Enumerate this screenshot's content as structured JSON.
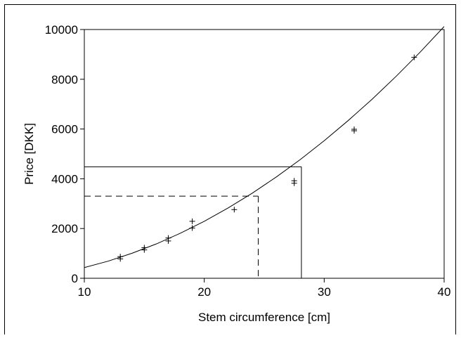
{
  "chart_data": {
    "type": "scatter",
    "xlabel": "Stem circumference  [cm]",
    "ylabel": "Price  [DKK]",
    "xlim": [
      10,
      40
    ],
    "ylim": [
      0,
      10000
    ],
    "xticks": [
      "10",
      "20",
      "30",
      "40"
    ],
    "yticks": [
      "0",
      "2000",
      "4000",
      "6000",
      "8000",
      "10000"
    ],
    "grid": false,
    "series": [
      {
        "type": "scatter",
        "marker": "plus",
        "x": [
          13,
          13,
          15,
          15,
          17,
          17,
          19,
          19,
          22.5,
          27.5,
          27.5,
          32.5,
          32.5,
          37.5
        ],
        "y": [
          780,
          870,
          1140,
          1230,
          1500,
          1620,
          2020,
          2290,
          2760,
          3820,
          3920,
          5930,
          5990,
          8880
        ]
      },
      {
        "type": "line",
        "x": [
          10,
          12,
          14,
          16,
          18,
          20,
          22,
          24,
          26,
          28,
          30,
          32,
          34,
          36,
          38,
          40
        ],
        "y": [
          430,
          690,
          1010,
          1380,
          1810,
          2290,
          2830,
          3420,
          4070,
          4770,
          5530,
          6340,
          7200,
          8120,
          9090,
          10120
        ]
      }
    ],
    "reference_lines": [
      {
        "style": "solid",
        "x": 28.1,
        "y": 4480
      },
      {
        "style": "dashed",
        "x": 24.5,
        "y": 3300
      }
    ]
  }
}
